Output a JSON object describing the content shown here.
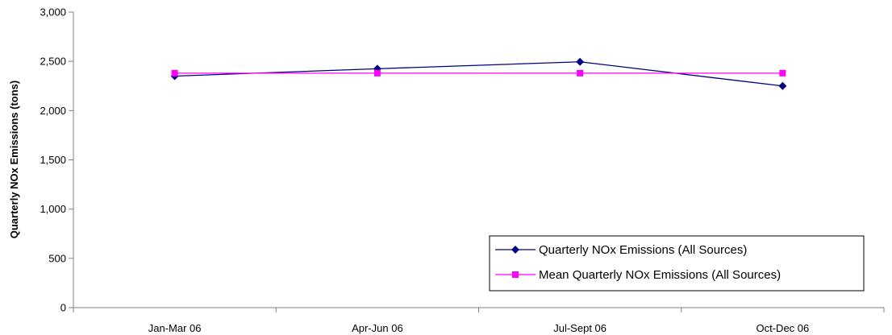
{
  "chart_data": {
    "type": "line",
    "title": "",
    "xlabel": "",
    "ylabel": "Quarterly NOx Emissions (tons)",
    "categories": [
      "Jan-Mar 06",
      "Apr-Jun 06",
      "Jul-Sept 06",
      "Oct-Dec 06"
    ],
    "ylim": [
      0,
      3000
    ],
    "yticks": [
      0,
      500,
      1000,
      1500,
      2000,
      2500,
      3000
    ],
    "ytick_labels": [
      "0",
      "500",
      "1,000",
      "1,500",
      "2,000",
      "2,500",
      "3,000"
    ],
    "grid": false,
    "legend_position": "bottom-right",
    "series": [
      {
        "name": "Quarterly NOx Emissions (All Sources)",
        "values": [
          2350,
          2425,
          2495,
          2250
        ],
        "color": "#000080",
        "marker": "diamond"
      },
      {
        "name": "Mean Quarterly NOx Emissions (All Sources)",
        "values": [
          2380,
          2380,
          2380,
          2380
        ],
        "color": "#FF00FF",
        "marker": "square"
      }
    ]
  }
}
